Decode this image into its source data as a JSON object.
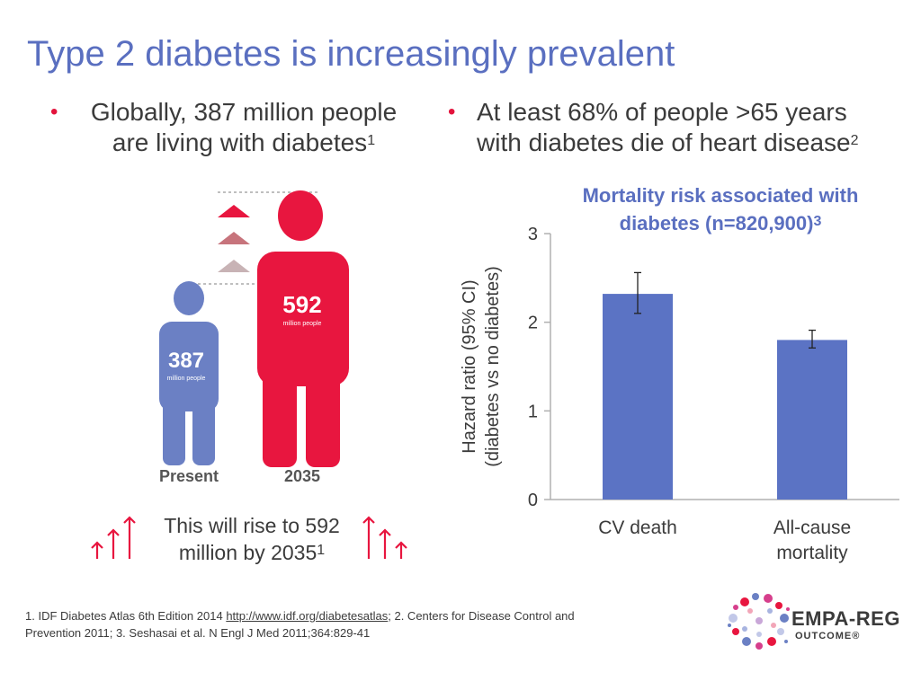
{
  "title": "Type 2 diabetes is increasingly prevalent",
  "bullets": {
    "left": {
      "line1": "Globally, 387 million people",
      "line2": "are living with diabetes",
      "ref": "1"
    },
    "right": {
      "line1": "At least 68% of people >65 years",
      "line2": "with diabetes die of heart disease",
      "ref": "2"
    },
    "marker": "•"
  },
  "infographic": {
    "present_value": "387",
    "present_unit": "million people",
    "present_label": "Present",
    "future_value": "592",
    "future_unit": "million people",
    "future_label": "2035",
    "rise_line1": "This will rise to 592",
    "rise_line2": "million by 2035",
    "rise_ref": "1",
    "colors": {
      "present": "#6b80c4",
      "future": "#e8163f",
      "arrow": "#e8163f"
    }
  },
  "chart_data": {
    "type": "bar",
    "title_line1": "Mortality risk associated with",
    "title_line2": "diabetes (n=820,900)",
    "title_ref": "3",
    "categories": [
      "CV death",
      "All-cause mortality"
    ],
    "category_lines": [
      [
        "CV death"
      ],
      [
        "All-cause",
        "mortality"
      ]
    ],
    "values": [
      2.32,
      1.8
    ],
    "ci_low": [
      2.1,
      1.71
    ],
    "ci_high": [
      2.56,
      1.91
    ],
    "ylabel_line1": "Hazard ratio (95% CI)",
    "ylabel_line2": "(diabetes vs no diabetes)",
    "ylim": [
      0,
      3
    ],
    "yticks": [
      "0",
      "1",
      "2",
      "3"
    ],
    "bar_color": "#5b73c4",
    "grid": false
  },
  "footnote": {
    "part1": "1. IDF Diabetes Atlas 6th Edition 2014 ",
    "link": "http://www.idf.org/diabetesatlas",
    "part2": "; 2. Centers for Disease Control and",
    "line2": "Prevention 2011; 3. Seshasai et al. N Engl J Med 2011;364:829-41"
  },
  "logo": {
    "name": "EMPA-REG",
    "sub": "OUTCOME®"
  }
}
